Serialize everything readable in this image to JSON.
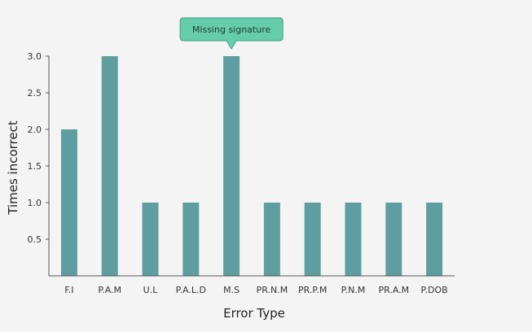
{
  "chart_data": {
    "type": "bar",
    "title": "",
    "xlabel": "Error Type",
    "ylabel": "Times incorrect",
    "categories": [
      "F.I",
      "P.A.M",
      "U.L",
      "P.A.L.D",
      "M.S",
      "PR.N.M",
      "PR.P.M",
      "P.N.M",
      "PR.A.M",
      "P.DOB"
    ],
    "values": [
      2,
      3,
      1,
      1,
      3,
      1,
      1,
      1,
      1,
      1
    ],
    "ylim": [
      0,
      3
    ],
    "yticks": [
      "0.5",
      "1.0",
      "1.5",
      "2.0",
      "2.5",
      "3.0"
    ],
    "grid": false,
    "bar_color": "#5f9ea0",
    "tooltip": {
      "category_index": 4,
      "text": "Missing signature",
      "background": "#66cdaa",
      "border": "#3a9e86"
    }
  }
}
